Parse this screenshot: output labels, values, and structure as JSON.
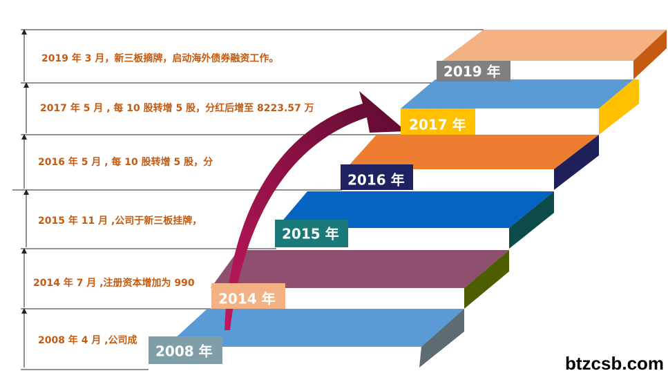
{
  "events": [
    "2019 年 3 月，新三板摘牌，启动海外债券融资工作。",
    "2017 年 5 月 , 每 10 股转增 5 股，分红后增至 8223.57 万",
    "2016 年 5 月 , 每 10 股转增 5 股，分",
    "2015 年 11 月 ,公司于新三板挂牌，",
    "2014 年 7 月 ,注册资本增加为 990",
    "2008 年 4 月 ,公司成"
  ],
  "years": [
    "2019 年",
    "2017 年",
    "2016 年",
    "2015 年",
    "2014 年",
    "2008 年"
  ],
  "watermark": "btzcsb.com"
}
